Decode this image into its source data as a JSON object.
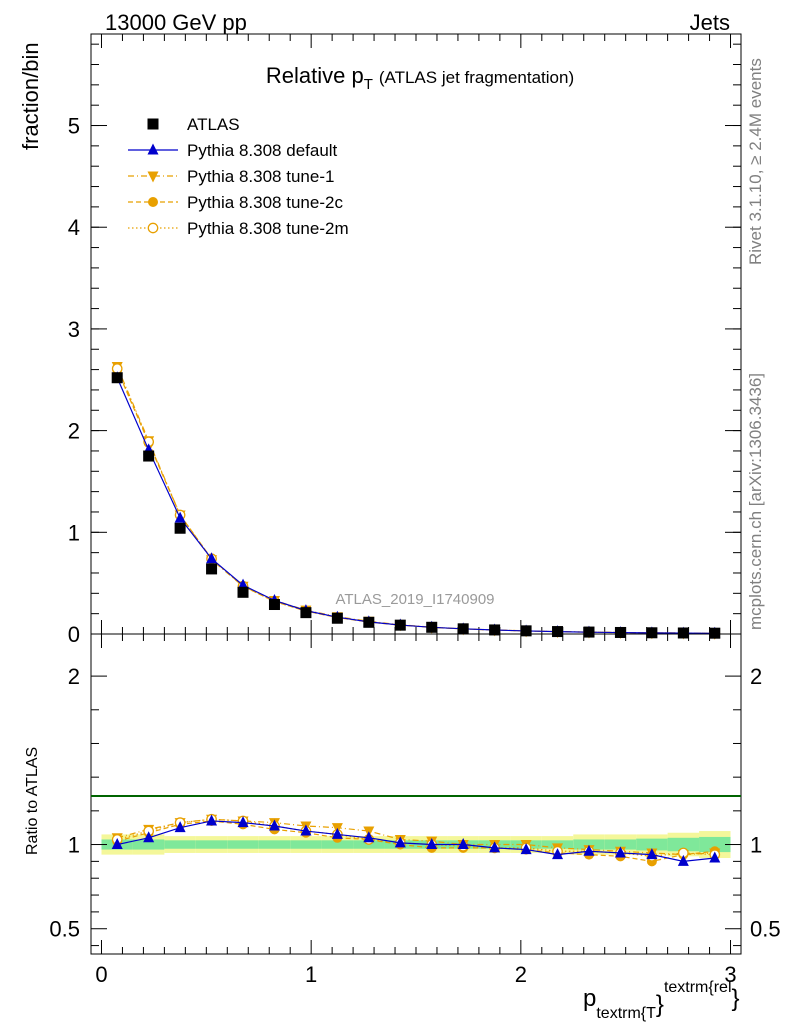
{
  "header": {
    "left": "13000 GeV pp",
    "right": "Jets"
  },
  "side_labels": {
    "rivet": "Rivet 3.1.10, ≥ 2.4M events",
    "site": "mcplots.cern.ch [arXiv:1306.3436]"
  },
  "colors": {
    "atlas": "#000000",
    "default": "#0000cc",
    "tunes": "#e8a000",
    "band_green": "#7fe89a",
    "band_yellow": "#f4f79a"
  },
  "chart_data": [
    {
      "type": "line",
      "title": "Relative p_T (ATLAS jet fragmentation)",
      "title_main": "Relative p",
      "title_sub": "T",
      "title_paren": "(ATLAS jet fragmentation)",
      "ylabel": "fraction/bin",
      "xlim": [
        -0.05,
        3.05
      ],
      "ylim": [
        0,
        5.9
      ],
      "yticks": [
        0,
        1,
        2,
        3,
        4,
        5
      ],
      "watermark": "ATLAS_2019_I1740909",
      "x": [
        0.075,
        0.225,
        0.375,
        0.525,
        0.675,
        0.825,
        0.975,
        1.125,
        1.275,
        1.425,
        1.575,
        1.725,
        1.875,
        2.025,
        2.175,
        2.325,
        2.475,
        2.625,
        2.775,
        2.925
      ],
      "series": [
        {
          "name": "ATLAS",
          "marker": "square",
          "values": [
            2.52,
            1.75,
            1.04,
            0.64,
            0.41,
            0.29,
            0.21,
            0.155,
            0.115,
            0.087,
            0.066,
            0.051,
            0.04,
            0.031,
            0.024,
            0.019,
            0.015,
            0.012,
            0.01,
            0.008
          ]
        },
        {
          "name": "Pythia 8.308 default",
          "marker": "triangle-up",
          "values": [
            2.52,
            1.81,
            1.14,
            0.74,
            0.48,
            0.33,
            0.23,
            0.165,
            0.119,
            0.088,
            0.066,
            0.051,
            0.039,
            0.03,
            0.023,
            0.018,
            0.014,
            0.011,
            0.009,
            0.007
          ]
        },
        {
          "name": "Pythia 8.308 tune-1",
          "marker": "triangle-down",
          "values": [
            2.63,
            1.9,
            1.17,
            0.73,
            0.47,
            0.33,
            0.235,
            0.17,
            0.125,
            0.091,
            0.067,
            0.051,
            0.04,
            0.031,
            0.023,
            0.019,
            0.015,
            0.012,
            0.0097,
            0.0078
          ]
        },
        {
          "name": "Pythia 8.308 tune-2c",
          "marker": "circle",
          "values": [
            2.6,
            1.88,
            1.17,
            0.74,
            0.47,
            0.32,
            0.225,
            0.162,
            0.117,
            0.087,
            0.065,
            0.05,
            0.039,
            0.03,
            0.023,
            0.018,
            0.014,
            0.011,
            0.009,
            0.0077
          ]
        },
        {
          "name": "Pythia 8.308 tune-2m",
          "marker": "circle-open",
          "values": [
            2.61,
            1.89,
            1.17,
            0.74,
            0.47,
            0.32,
            0.225,
            0.163,
            0.118,
            0.088,
            0.066,
            0.05,
            0.039,
            0.031,
            0.023,
            0.018,
            0.014,
            0.0115,
            0.0096,
            0.0075
          ]
        }
      ]
    },
    {
      "type": "line",
      "ylabel": "Ratio to ATLAS",
      "xlabel": "p_{textrm{T}}^{textrm{rel}}",
      "xlabel_main": "p",
      "xlabel_sub": "textrm{T",
      "xlabel_mid": "}",
      "xlabel_sup": "textrm{rel",
      "xlabel_end": "}",
      "xlim": [
        -0.05,
        3.05
      ],
      "ylim": [
        0.35,
        2.25
      ],
      "xticks": [
        0,
        1,
        2,
        3
      ],
      "yticks": [
        0.5,
        1,
        2
      ],
      "band_yellow": [
        0.06,
        0.06,
        0.05,
        0.05,
        0.05,
        0.05,
        0.05,
        0.05,
        0.05,
        0.05,
        0.05,
        0.05,
        0.05,
        0.05,
        0.05,
        0.06,
        0.06,
        0.06,
        0.07,
        0.08
      ],
      "band_green": [
        0.03,
        0.03,
        0.025,
        0.025,
        0.025,
        0.025,
        0.025,
        0.025,
        0.025,
        0.025,
        0.025,
        0.025,
        0.025,
        0.025,
        0.025,
        0.03,
        0.03,
        0.035,
        0.04,
        0.045
      ],
      "series": [
        {
          "name": "Pythia 8.308 default",
          "marker": "triangle-up",
          "values": [
            1.0,
            1.04,
            1.1,
            1.14,
            1.13,
            1.11,
            1.08,
            1.06,
            1.04,
            1.01,
            1.0,
            1.0,
            0.98,
            0.97,
            0.94,
            0.96,
            0.95,
            0.94,
            0.9,
            0.92
          ]
        },
        {
          "name": "Pythia 8.308 tune-1",
          "marker": "triangle-down",
          "values": [
            1.04,
            1.09,
            1.13,
            1.15,
            1.14,
            1.13,
            1.11,
            1.1,
            1.08,
            1.03,
            1.02,
            1.0,
            1.0,
            1.0,
            0.98,
            0.97,
            0.96,
            0.95,
            0.94,
            0.95
          ]
        },
        {
          "name": "Pythia 8.308 tune-2c",
          "marker": "circle",
          "values": [
            1.02,
            1.07,
            1.12,
            1.14,
            1.12,
            1.09,
            1.07,
            1.04,
            1.03,
            1.0,
            0.98,
            0.98,
            0.98,
            0.97,
            0.95,
            0.94,
            0.93,
            0.9,
            0.94,
            0.96
          ]
        },
        {
          "name": "Pythia 8.308 tune-2m",
          "marker": "circle-open",
          "values": [
            1.03,
            1.08,
            1.13,
            1.15,
            1.14,
            1.11,
            1.08,
            1.06,
            1.03,
            1.01,
            1.0,
            0.99,
            0.98,
            0.98,
            0.96,
            0.96,
            0.95,
            0.93,
            0.95,
            0.94
          ]
        }
      ]
    }
  ]
}
